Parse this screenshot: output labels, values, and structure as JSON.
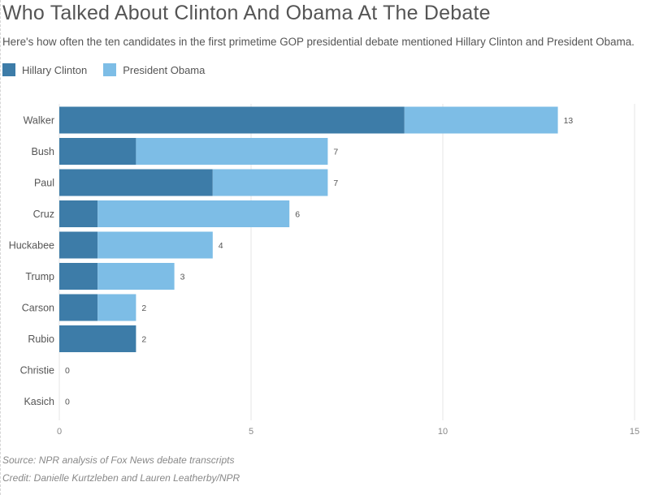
{
  "title": "Who Talked About Clinton And Obama At The Debate",
  "subtitle": "Here's how often the ten candidates in the first primetime GOP presidential debate mentioned Hillary Clinton and President Obama.",
  "source": "Source: NPR analysis of Fox News debate transcripts",
  "credit": "Credit: Danielle Kurtzleben and Lauren Leatherby/NPR",
  "colors": {
    "clinton": "#3d7ca8",
    "obama": "#7dbde6",
    "grid": "#e6e6e6",
    "text": "#555555"
  },
  "chart_data": {
    "type": "bar",
    "orientation": "horizontal",
    "stacked": true,
    "categories": [
      "Walker",
      "Bush",
      "Paul",
      "Cruz",
      "Huckabee",
      "Trump",
      "Carson",
      "Rubio",
      "Christie",
      "Kasich"
    ],
    "series": [
      {
        "name": "Hillary Clinton",
        "color": "#3d7ca8",
        "values": [
          9,
          2,
          4,
          1,
          1,
          1,
          1,
          2,
          0,
          0
        ]
      },
      {
        "name": "President Obama",
        "color": "#7dbde6",
        "values": [
          4,
          5,
          3,
          5,
          3,
          2,
          1,
          0,
          0,
          0
        ]
      }
    ],
    "totals": [
      13,
      7,
      7,
      6,
      4,
      3,
      2,
      2,
      0,
      0
    ],
    "xlim": [
      0,
      15
    ],
    "xticks": [
      0,
      5,
      10,
      15
    ],
    "grid": true,
    "legend_position": "top-left"
  }
}
